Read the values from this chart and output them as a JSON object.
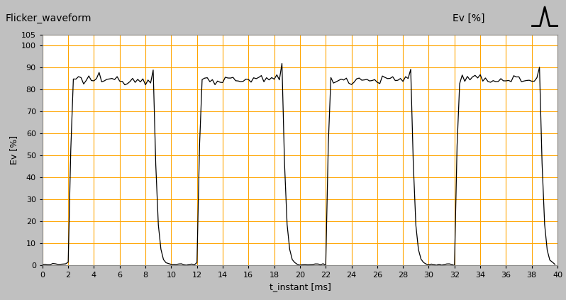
{
  "title": "Flicker_waveform",
  "legend_label": "Ev [%]",
  "xlabel": "t_instant [ms]",
  "ylabel": "Ev [%]",
  "xlim": [
    0,
    40
  ],
  "ylim": [
    0,
    105
  ],
  "yticks": [
    0,
    10,
    20,
    30,
    40,
    50,
    60,
    70,
    80,
    90,
    100,
    105
  ],
  "xticks": [
    0,
    2,
    4,
    6,
    8,
    10,
    12,
    14,
    16,
    18,
    20,
    22,
    24,
    26,
    28,
    30,
    32,
    34,
    36,
    38,
    40
  ],
  "grid_color": "#FFA500",
  "plot_bg_color": "#FFFFFF",
  "outer_bg_color": "#C0C0C0",
  "line_color": "black",
  "total_time_ms": 40,
  "period_ms": 10.0,
  "off_start_ms": 0.0,
  "off_end_ms": 2.0,
  "rise_end_ms": 2.35,
  "on_level": 84.5,
  "on_noise_std": 1.0,
  "peak_value": 95.5,
  "fall_start_ms": 8.5,
  "fall_end_ms": 9.95,
  "base_value": 0.5,
  "base_noise_std": 0.2
}
